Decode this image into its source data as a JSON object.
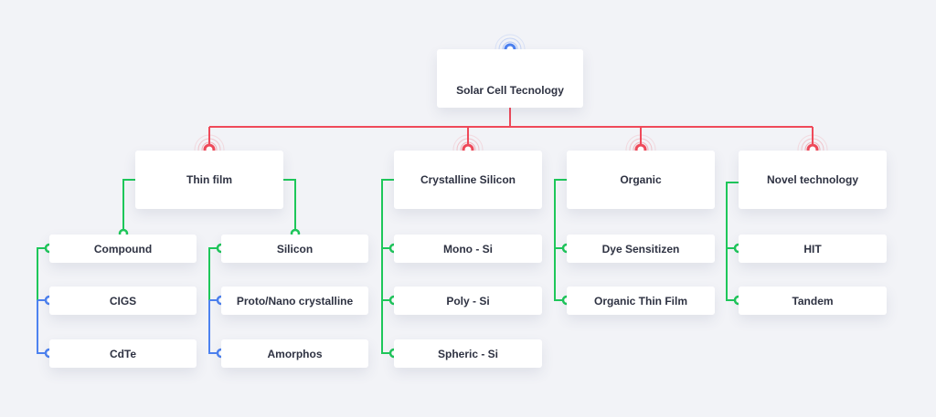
{
  "colors": {
    "red": "#ef4a5a",
    "green": "#1ec75a",
    "blue": "#4d82f0",
    "background": "#f2f3f7"
  },
  "root": {
    "label": "Solar Cell Tecnology"
  },
  "categories": [
    {
      "label": "Thin film",
      "groups": [
        {
          "label": "Compound",
          "children": [
            "CIGS",
            "CdTe"
          ]
        },
        {
          "label": "Silicon",
          "children": [
            "Proto/Nano crystalline",
            "Amorphos"
          ]
        }
      ]
    },
    {
      "label": "Crystalline Silicon",
      "children": [
        "Mono - Si",
        "Poly - Si",
        "Spheric - Si"
      ]
    },
    {
      "label": "Organic",
      "children": [
        "Dye Sensitizen",
        "Organic Thin Film"
      ]
    },
    {
      "label": "Novel technology",
      "children": [
        "HIT",
        "Tandem"
      ]
    }
  ]
}
